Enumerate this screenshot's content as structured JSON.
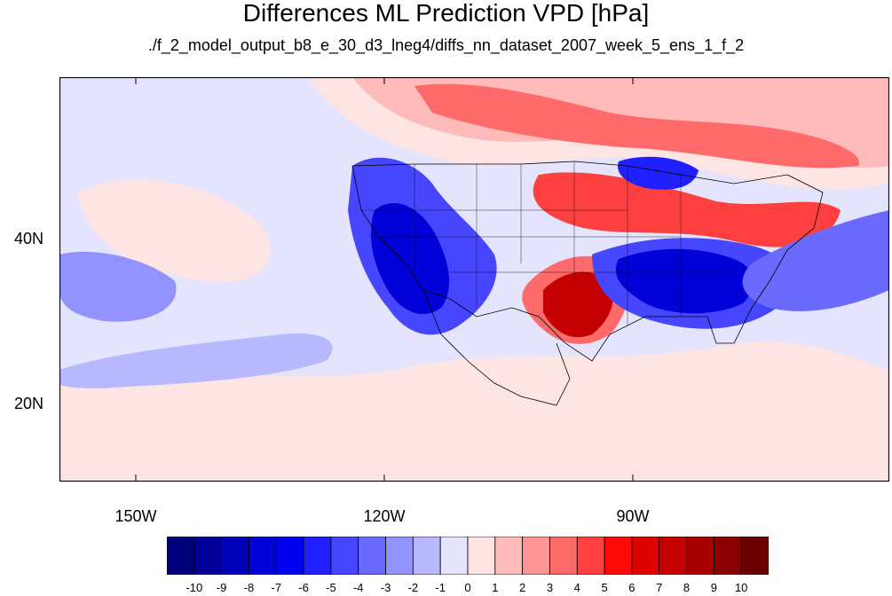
{
  "title": "Differences ML Prediction VPD [hPa]",
  "subtitle": "./f_2_model_output_b8_e_30_d3_lneg4/diffs_nn_dataset_2007_week_5_ens_1_f_2",
  "lat_labels": [
    "40N",
    "20N"
  ],
  "lon_labels": [
    "150W",
    "120W",
    "90W"
  ],
  "colorbar": {
    "labels": [
      "-10",
      "-9",
      "-8",
      "-7",
      "-6",
      "-5",
      "-4",
      "-3",
      "-2",
      "-1",
      "0",
      "1",
      "2",
      "3",
      "4",
      "5",
      "6",
      "7",
      "8",
      "9",
      "10"
    ],
    "colors": [
      "#00007a",
      "#000098",
      "#0000b8",
      "#0000d8",
      "#0000f0",
      "#1f1fff",
      "#4646ff",
      "#6a6aff",
      "#9393ff",
      "#b8b8ff",
      "#e4e4ff",
      "#ffe4e4",
      "#ffbaba",
      "#ff9494",
      "#ff6a6a",
      "#ff4040",
      "#ff0a0a",
      "#e00000",
      "#c40000",
      "#a80000",
      "#8a0000",
      "#6a0000"
    ]
  },
  "colors": {
    "deep_blue": "#0000d8",
    "blue": "#4646ff",
    "light_blue": "#b8b8ff",
    "pale_blue": "#e4e4ff",
    "pale_red": "#ffe4e4",
    "light_red": "#ffbaba",
    "red": "#ff4040",
    "deep_red": "#c40000"
  }
}
